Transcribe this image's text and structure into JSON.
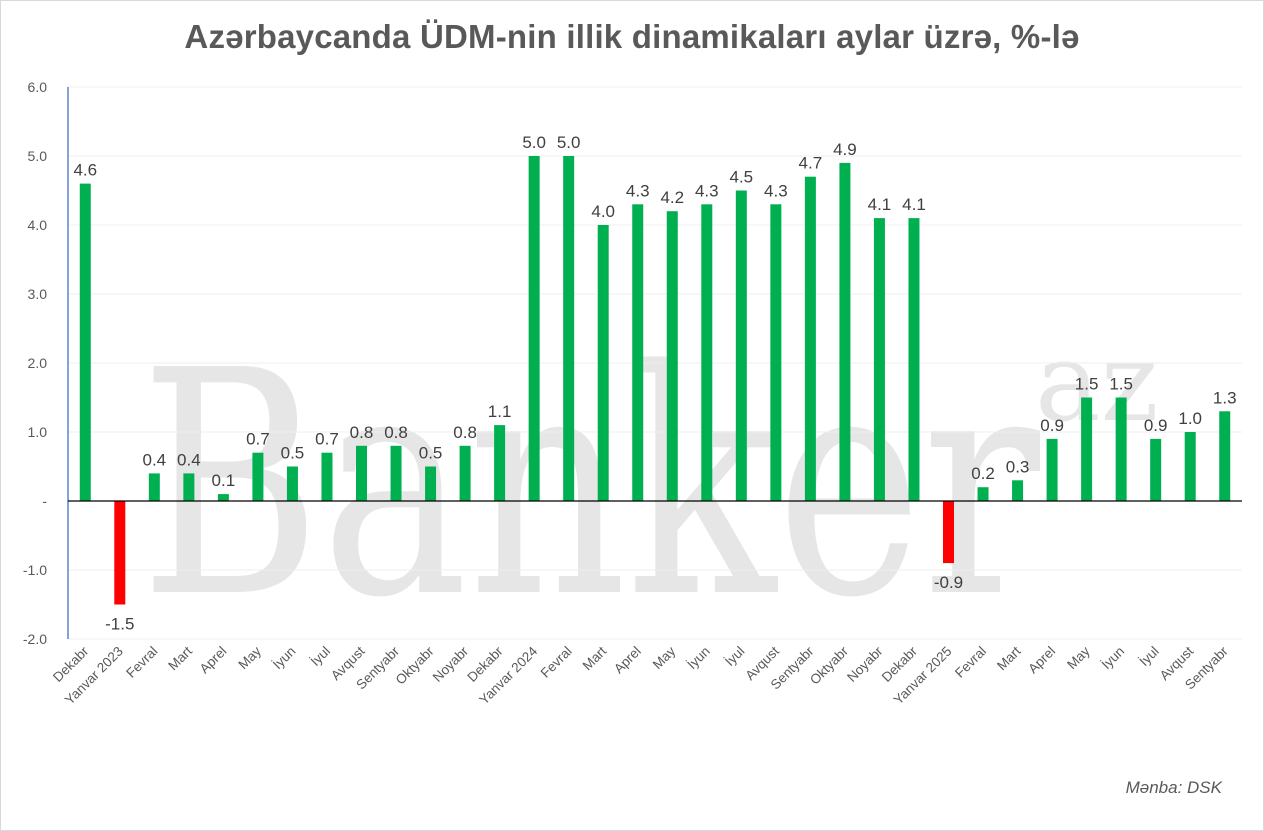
{
  "title": "Azərbaycanda ÜDM-nin illik dinamikaları aylar üzrə, %-lə",
  "source": "Mənba: DSK",
  "watermark": "Banker",
  "watermark_sup": "az",
  "colors": {
    "positive": "#00b050",
    "negative": "#ff0000",
    "axis": "#4472c4"
  },
  "chart_data": {
    "type": "bar",
    "title": "Azərbaycanda ÜDM-nin illik dinamikaları aylar üzrə, %-lə",
    "xlabel": "",
    "ylabel": "",
    "ylim": [
      -2.0,
      6.0
    ],
    "yticks": [
      -2.0,
      -1.0,
      0,
      1.0,
      2.0,
      3.0,
      4.0,
      5.0,
      6.0
    ],
    "ytick_labels": [
      "-2.0",
      "-1.0",
      "-",
      "1.0",
      "2.0",
      "3.0",
      "4.0",
      "5.0",
      "6.0"
    ],
    "grid": true,
    "categories": [
      "Dekabr",
      "Yanvar 2023",
      "Fevral",
      "Mart",
      "Aprel",
      "May",
      "İyun",
      "İyul",
      "Avqust",
      "Sentyabr",
      "Oktyabr",
      "Noyabr",
      "Dekabr",
      "Yanvar 2024",
      "Fevral",
      "Mart",
      "Aprel",
      "May",
      "İyun",
      "İyul",
      "Avqust",
      "Sentyabr",
      "Oktyabr",
      "Noyabr",
      "Dekabr",
      "Yanvar 2025",
      "Fevral",
      "Mart",
      "Aprel",
      "May",
      "İyun",
      "İyul",
      "Avqust",
      "Sentyabr"
    ],
    "values": [
      4.6,
      -1.5,
      0.4,
      0.4,
      0.1,
      0.7,
      0.5,
      0.7,
      0.8,
      0.8,
      0.5,
      0.8,
      1.1,
      5.0,
      5.0,
      4.0,
      4.3,
      4.2,
      4.3,
      4.5,
      4.3,
      4.7,
      4.9,
      4.1,
      4.1,
      -0.9,
      0.2,
      0.3,
      0.9,
      1.5,
      1.5,
      0.9,
      1.0,
      1.3
    ]
  }
}
